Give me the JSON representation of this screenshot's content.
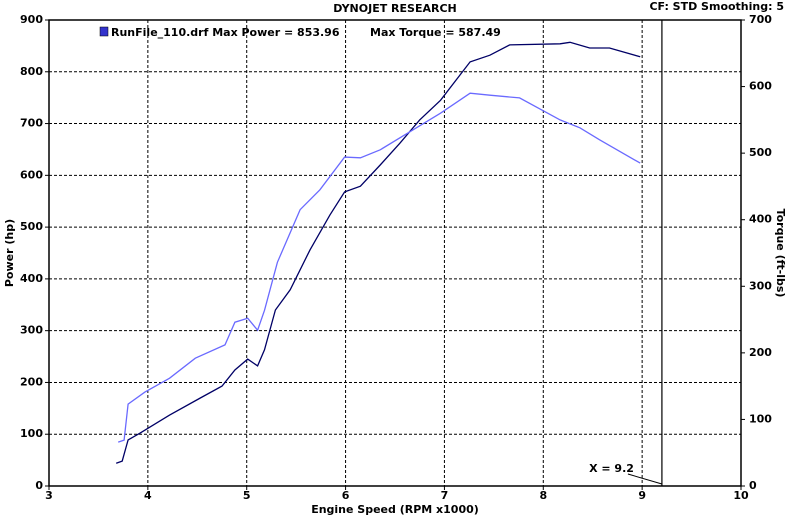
{
  "chart_data": {
    "type": "line",
    "title": "DYNOJET RESEARCH",
    "settings_text": "CF: STD  Smoothing: 5",
    "legend": [
      "RunFile_110.drf Max Power = 853.96",
      "Max Torque = 587.49"
    ],
    "legend_color": "#3333cc",
    "x_label": "Engine Speed (RPM x1000)",
    "y_label": "Power (hp)",
    "y2_label": "Torque (ft-lbs)",
    "xlim": [
      3,
      10
    ],
    "xticks": [
      3,
      4,
      5,
      6,
      7,
      8,
      9,
      10
    ],
    "ylim": [
      0,
      900
    ],
    "yticks": [
      0,
      100,
      200,
      300,
      400,
      500,
      600,
      700,
      800,
      900
    ],
    "y2lim": [
      0,
      700
    ],
    "y2ticks": [
      0,
      100,
      200,
      300,
      400,
      500,
      600,
      700
    ],
    "grid": true,
    "cursor": {
      "x": 9.2,
      "label": "X = 9.2"
    },
    "series": [
      {
        "color": "#000066",
        "x": [
          3.68,
          3.74,
          3.8,
          3.92,
          4.22,
          4.53,
          4.75,
          4.88,
          5.01,
          5.11,
          5.18,
          5.29,
          5.44,
          5.64,
          5.84,
          5.99,
          6.15,
          6.35,
          6.55,
          6.75,
          6.96,
          7.26,
          7.46,
          7.66,
          8.17,
          8.27,
          8.47,
          8.67,
          8.98
        ],
        "values": [
          44,
          48,
          89,
          102,
          137,
          170,
          193,
          224,
          245,
          232,
          263,
          340,
          379,
          456,
          523,
          568,
          579,
          620,
          662,
          707,
          745,
          819,
          832,
          852,
          854,
          857,
          846,
          846,
          829
        ]
      },
      {
        "color": "#6a6aff",
        "axis": "y2",
        "x": [
          3.7,
          3.76,
          3.8,
          3.97,
          4.22,
          4.48,
          4.78,
          4.88,
          5.01,
          5.11,
          5.18,
          5.31,
          5.54,
          5.74,
          5.99,
          6.15,
          6.35,
          6.65,
          6.96,
          7.26,
          7.46,
          7.76,
          8.17,
          8.37,
          8.57,
          8.98
        ],
        "values": [
          66,
          69,
          123,
          141,
          162,
          192,
          212,
          246,
          252,
          234,
          264,
          336,
          415,
          445,
          494,
          493,
          505,
          532,
          560,
          590,
          587,
          583,
          550,
          538,
          520,
          485
        ]
      }
    ]
  }
}
